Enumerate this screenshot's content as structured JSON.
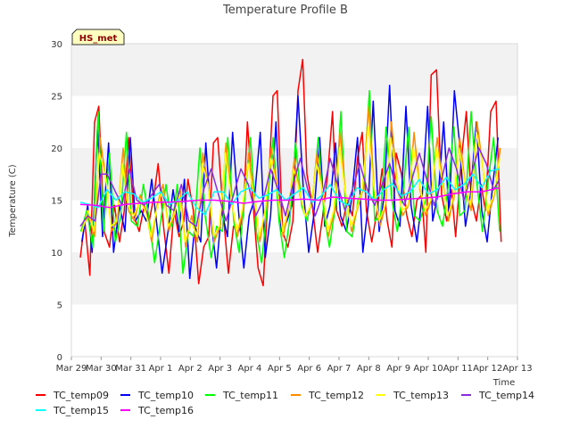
{
  "chart_data": {
    "type": "line",
    "title": "Temperature Profile B",
    "xlabel": "Time",
    "ylabel": "Temperature (C)",
    "badge": "HS_met",
    "xlim": [
      "2024-03-29",
      "2024-04-13"
    ],
    "ylim": [
      0,
      30
    ],
    "y_ticks": [
      0,
      5,
      10,
      15,
      20,
      25,
      30
    ],
    "x_ticks": [
      "Mar 29",
      "Mar 30",
      "Mar 31",
      "Apr 1",
      "Apr 2",
      "Apr 3",
      "Apr 4",
      "Apr 5",
      "Apr 6",
      "Apr 7",
      "Apr 8",
      "Apr 9",
      "Apr 10",
      "Apr 11",
      "Apr 12",
      "Apr 13"
    ],
    "grid": "horizontal bands",
    "legend_position": "bottom",
    "series": [
      {
        "name": "TC_temp09",
        "color": "#ff0000",
        "days": [
          0.3,
          0.45,
          0.62,
          0.78,
          0.92,
          1.1,
          1.28,
          1.45,
          1.62,
          1.78,
          1.92,
          2.1,
          2.28,
          2.45,
          2.62,
          2.78,
          2.92,
          3.1,
          3.28,
          3.45,
          3.62,
          3.78,
          3.92,
          4.1,
          4.28,
          4.45,
          4.62,
          4.78,
          4.92,
          5.1,
          5.28,
          5.45,
          5.62,
          5.78,
          5.92,
          6.1,
          6.28,
          6.45,
          6.62,
          6.78,
          6.92,
          7.1,
          7.28,
          7.45,
          7.62,
          7.78,
          7.92,
          8.1,
          8.28,
          8.45,
          8.62,
          8.78,
          8.92,
          9.1,
          9.28,
          9.45,
          9.62,
          9.78,
          9.92,
          10.1,
          10.28,
          10.45,
          10.62,
          10.78,
          10.92,
          11.1,
          11.28,
          11.45,
          11.62,
          11.78,
          11.92,
          12.1,
          12.28,
          12.45,
          12.62,
          12.78,
          12.92,
          13.1,
          13.28,
          13.45,
          13.62,
          13.78,
          13.92,
          14.1,
          14.28,
          14.45
        ],
        "temps": [
          9.5,
          13.0,
          7.8,
          22.5,
          24.0,
          12.0,
          10.5,
          14.5,
          11.0,
          14.0,
          21.0,
          13.5,
          12.0,
          14.5,
          13.0,
          15.5,
          18.5,
          12.5,
          8.0,
          14.0,
          11.5,
          13.0,
          17.0,
          14.0,
          7.0,
          10.5,
          11.5,
          20.5,
          21.0,
          14.0,
          8.0,
          12.5,
          12.0,
          13.5,
          22.5,
          15.0,
          8.5,
          6.8,
          16.0,
          25.0,
          25.5,
          12.0,
          10.5,
          13.0,
          25.5,
          28.5,
          17.5,
          14.5,
          10.0,
          13.5,
          17.5,
          23.5,
          14.0,
          12.5,
          15.0,
          13.5,
          19.0,
          21.5,
          14.0,
          11.0,
          14.0,
          18.0,
          13.0,
          10.5,
          19.5,
          17.5,
          13.5,
          11.5,
          15.0,
          15.5,
          10.0,
          27.0,
          27.5,
          15.5,
          13.0,
          16.0,
          11.5,
          18.5,
          23.5,
          15.0,
          13.0,
          16.5,
          14.0,
          23.5,
          24.5,
          11.0
        ]
      },
      {
        "name": "TC_temp10",
        "color": "#0000ff",
        "days": [
          0.35,
          0.55,
          0.7,
          0.88,
          1.05,
          1.25,
          1.42,
          1.62,
          1.8,
          1.98,
          2.15,
          2.35,
          2.52,
          2.7,
          2.88,
          3.05,
          3.25,
          3.42,
          3.62,
          3.8,
          3.98,
          4.15,
          4.35,
          4.52,
          4.7,
          4.88,
          5.05,
          5.25,
          5.42,
          5.62,
          5.8,
          5.98,
          6.15,
          6.35,
          6.52,
          6.7,
          6.88,
          7.05,
          7.25,
          7.42,
          7.62,
          7.8,
          7.98,
          8.15,
          8.35,
          8.52,
          8.7,
          8.88,
          9.05,
          9.25,
          9.42,
          9.62,
          9.8,
          9.98,
          10.15,
          10.35,
          10.52,
          10.7,
          10.88,
          11.05,
          11.25,
          11.42,
          11.62,
          11.8,
          11.98,
          12.15,
          12.35,
          12.52,
          12.7,
          12.88,
          13.05,
          13.25,
          13.42,
          13.62,
          13.8,
          13.98,
          14.15,
          14.35
        ],
        "temps": [
          11.0,
          14.5,
          10.0,
          22.0,
          11.5,
          20.5,
          10.0,
          14.5,
          12.0,
          21.0,
          13.0,
          14.0,
          13.0,
          17.0,
          12.5,
          8.0,
          12.0,
          16.0,
          12.0,
          17.0,
          7.5,
          12.5,
          11.0,
          20.5,
          13.0,
          8.5,
          14.0,
          11.5,
          21.5,
          14.0,
          8.5,
          13.5,
          15.0,
          21.5,
          9.5,
          13.5,
          22.5,
          12.0,
          13.0,
          14.5,
          25.0,
          16.0,
          10.0,
          13.5,
          21.0,
          12.5,
          14.5,
          20.5,
          13.5,
          12.0,
          15.0,
          21.0,
          10.0,
          14.5,
          24.5,
          12.0,
          15.5,
          26.0,
          14.0,
          12.5,
          24.0,
          14.5,
          11.0,
          15.5,
          24.0,
          13.0,
          16.0,
          22.5,
          13.5,
          25.5,
          20.5,
          12.5,
          15.5,
          22.5,
          14.0,
          11.0,
          16.0,
          21.0
        ]
      },
      {
        "name": "TC_temp11",
        "color": "#00ff00",
        "days": [
          0.32,
          0.52,
          0.72,
          0.9,
          1.08,
          1.28,
          1.48,
          1.66,
          1.85,
          2.02,
          2.22,
          2.42,
          2.6,
          2.8,
          2.98,
          3.18,
          3.38,
          3.56,
          3.75,
          3.94,
          4.12,
          4.32,
          4.5,
          4.7,
          4.88,
          5.08,
          5.26,
          5.46,
          5.64,
          5.84,
          6.02,
          6.22,
          6.4,
          6.6,
          6.78,
          6.98,
          7.16,
          7.36,
          7.54,
          7.74,
          7.92,
          8.12,
          8.3,
          8.5,
          8.68,
          8.88,
          9.06,
          9.26,
          9.44,
          9.64,
          9.82,
          10.02,
          10.2,
          10.4,
          10.58,
          10.78,
          10.96,
          11.16,
          11.34,
          11.54,
          11.72,
          11.92,
          12.1,
          12.3,
          12.48,
          12.68,
          12.86,
          13.06,
          13.24,
          13.44,
          13.62,
          13.82,
          14.0,
          14.2,
          14.4
        ],
        "temps": [
          12.0,
          14.0,
          10.5,
          23.5,
          12.0,
          19.5,
          11.0,
          13.5,
          21.5,
          13.0,
          12.5,
          16.5,
          13.5,
          9.0,
          12.5,
          16.5,
          12.5,
          16.5,
          8.0,
          12.0,
          11.5,
          20.0,
          13.5,
          9.5,
          12.5,
          12.0,
          21.0,
          13.0,
          10.0,
          15.5,
          21.0,
          12.0,
          9.0,
          15.0,
          21.0,
          13.0,
          9.5,
          13.5,
          20.5,
          14.5,
          13.0,
          15.5,
          21.0,
          13.5,
          10.5,
          14.5,
          23.5,
          12.0,
          11.5,
          15.0,
          16.0,
          25.5,
          13.0,
          13.5,
          22.0,
          15.0,
          12.0,
          16.0,
          22.0,
          13.5,
          13.0,
          15.0,
          23.0,
          14.0,
          12.5,
          16.5,
          22.0,
          13.5,
          14.0,
          23.5,
          17.0,
          12.0,
          16.5,
          21.0,
          12.0
        ]
      },
      {
        "name": "TC_temp12",
        "color": "#ff8c00",
        "days": [
          0.38,
          0.58,
          0.78,
          0.96,
          1.16,
          1.36,
          1.54,
          1.74,
          1.92,
          2.12,
          2.32,
          2.5,
          2.7,
          2.88,
          3.08,
          3.28,
          3.46,
          3.66,
          3.84,
          4.04,
          4.24,
          4.42,
          4.62,
          4.8,
          5.0,
          5.2,
          5.38,
          5.58,
          5.76,
          5.96,
          6.16,
          6.34,
          6.54,
          6.72,
          6.92,
          7.12,
          7.3,
          7.5,
          7.68,
          7.88,
          8.08,
          8.26,
          8.46,
          8.64,
          8.84,
          9.04,
          9.22,
          9.42,
          9.6,
          9.8,
          10.0,
          10.18,
          10.38,
          10.56,
          10.76,
          10.96,
          11.14,
          11.34,
          11.52,
          11.72,
          11.92,
          12.1,
          12.3,
          12.48,
          12.68,
          12.88,
          13.06,
          13.26,
          13.44,
          13.64,
          13.84,
          14.02,
          14.22,
          14.42
        ],
        "temps": [
          12.5,
          13.5,
          11.5,
          21.0,
          17.0,
          12.0,
          13.0,
          20.0,
          14.0,
          13.0,
          15.5,
          14.0,
          11.0,
          14.5,
          16.5,
          12.0,
          14.0,
          16.0,
          10.5,
          13.5,
          11.0,
          19.5,
          16.0,
          11.0,
          12.5,
          20.5,
          15.0,
          11.5,
          14.0,
          19.5,
          15.0,
          11.0,
          14.5,
          20.0,
          16.5,
          11.5,
          14.0,
          19.0,
          15.5,
          13.5,
          14.5,
          19.5,
          15.5,
          11.5,
          14.0,
          21.5,
          15.5,
          12.0,
          14.0,
          16.0,
          24.0,
          16.0,
          12.5,
          14.5,
          22.5,
          16.5,
          13.5,
          14.5,
          21.5,
          16.0,
          13.5,
          15.0,
          21.0,
          17.0,
          13.0,
          15.5,
          21.0,
          16.0,
          14.0,
          22.5,
          18.0,
          13.5,
          15.5,
          20.0
        ]
      },
      {
        "name": "TC_temp13",
        "color": "#ffff00",
        "days": [
          0.36,
          0.56,
          0.76,
          0.94,
          1.14,
          1.34,
          1.52,
          1.72,
          1.9,
          2.1,
          2.3,
          2.48,
          2.68,
          2.86,
          3.06,
          3.26,
          3.44,
          3.64,
          3.82,
          4.02,
          4.22,
          4.4,
          4.6,
          4.78,
          4.98,
          5.18,
          5.36,
          5.56,
          5.74,
          5.94,
          6.14,
          6.32,
          6.52,
          6.7,
          6.9,
          7.1,
          7.28,
          7.48,
          7.66,
          7.86,
          8.06,
          8.24,
          8.44,
          8.62,
          8.82,
          9.02,
          9.2,
          9.4,
          9.58,
          9.78,
          9.98,
          10.16,
          10.36,
          10.54,
          10.74,
          10.94,
          11.12,
          11.32,
          11.5,
          11.7,
          11.9,
          12.08,
          12.28,
          12.46,
          12.66,
          12.86,
          13.04,
          13.24,
          13.42,
          13.62,
          13.82,
          14.0,
          14.2,
          14.4
        ],
        "temps": [
          12.0,
          14.0,
          12.0,
          19.5,
          17.5,
          12.5,
          13.0,
          18.5,
          14.5,
          13.5,
          15.0,
          14.0,
          11.5,
          14.0,
          16.0,
          12.5,
          13.5,
          15.5,
          11.0,
          13.0,
          11.5,
          18.5,
          16.5,
          11.5,
          12.5,
          19.5,
          15.5,
          12.0,
          14.0,
          18.5,
          15.5,
          11.5,
          14.0,
          19.0,
          16.5,
          12.0,
          14.0,
          18.0,
          16.0,
          13.5,
          14.5,
          18.5,
          16.0,
          12.0,
          14.0,
          20.0,
          16.0,
          12.5,
          14.0,
          16.0,
          22.0,
          16.5,
          13.0,
          14.5,
          21.0,
          17.0,
          14.0,
          14.5,
          20.0,
          16.5,
          14.0,
          15.0,
          20.0,
          17.0,
          13.5,
          15.5,
          20.0,
          16.5,
          14.5,
          21.5,
          18.5,
          14.0,
          15.5,
          19.0
        ]
      },
      {
        "name": "TC_temp14",
        "color": "#8a2be2",
        "days": [
          0.3,
          0.55,
          0.8,
          1.0,
          1.2,
          1.45,
          1.7,
          1.95,
          2.2,
          2.45,
          2.7,
          2.95,
          3.2,
          3.45,
          3.7,
          3.95,
          4.2,
          4.45,
          4.7,
          4.95,
          5.2,
          5.45,
          5.7,
          5.95,
          6.2,
          6.45,
          6.7,
          6.95,
          7.2,
          7.45,
          7.7,
          7.95,
          8.2,
          8.45,
          8.7,
          8.95,
          9.2,
          9.45,
          9.7,
          9.95,
          10.2,
          10.45,
          10.7,
          10.95,
          11.2,
          11.45,
          11.7,
          11.95,
          12.2,
          12.45,
          12.7,
          12.95,
          13.2,
          13.45,
          13.7,
          13.95,
          14.2,
          14.4
        ],
        "temps": [
          12.5,
          13.5,
          13.0,
          17.5,
          17.5,
          16.0,
          14.5,
          18.0,
          15.0,
          14.5,
          15.5,
          16.5,
          14.5,
          14.0,
          16.5,
          13.0,
          12.5,
          16.0,
          18.0,
          15.5,
          13.0,
          15.5,
          18.0,
          16.5,
          13.5,
          15.0,
          18.0,
          16.0,
          13.5,
          16.5,
          19.0,
          16.0,
          13.5,
          15.5,
          19.0,
          16.5,
          14.0,
          16.0,
          18.5,
          16.0,
          14.5,
          16.5,
          18.5,
          16.0,
          14.5,
          17.0,
          19.5,
          17.0,
          14.5,
          17.0,
          20.0,
          18.0,
          15.0,
          17.5,
          20.0,
          18.5,
          16.0,
          17.0
        ]
      },
      {
        "name": "TC_temp15",
        "color": "#00ffff",
        "days": [
          0.3,
          0.6,
          0.9,
          1.2,
          1.5,
          1.8,
          2.1,
          2.4,
          2.7,
          3.0,
          3.3,
          3.6,
          3.9,
          4.2,
          4.5,
          4.8,
          5.1,
          5.4,
          5.7,
          6.0,
          6.3,
          6.6,
          6.9,
          7.2,
          7.5,
          7.8,
          8.1,
          8.4,
          8.7,
          9.0,
          9.3,
          9.6,
          9.9,
          10.2,
          10.5,
          10.8,
          11.1,
          11.4,
          11.7,
          12.0,
          12.3,
          12.6,
          12.9,
          13.2,
          13.5,
          13.8,
          14.1,
          14.4
        ],
        "temps": [
          14.8,
          14.6,
          14.3,
          16.0,
          15.0,
          15.8,
          15.6,
          14.8,
          15.2,
          15.8,
          14.6,
          15.0,
          15.8,
          14.3,
          13.6,
          15.8,
          15.8,
          14.6,
          15.8,
          16.2,
          15.2,
          15.5,
          16.0,
          15.0,
          15.6,
          16.2,
          14.8,
          15.4,
          16.5,
          15.0,
          14.5,
          16.2,
          15.8,
          15.0,
          16.0,
          16.6,
          15.4,
          15.8,
          17.0,
          15.6,
          16.0,
          17.2,
          16.0,
          16.5,
          17.5,
          16.2,
          17.8,
          18.0
        ]
      },
      {
        "name": "TC_temp16",
        "color": "#ff00ff",
        "days": [
          0.3,
          0.8,
          1.3,
          1.8,
          2.3,
          2.8,
          3.3,
          3.8,
          4.3,
          4.8,
          5.3,
          5.8,
          6.3,
          6.8,
          7.3,
          7.8,
          8.3,
          8.8,
          9.3,
          9.8,
          10.3,
          10.8,
          11.3,
          11.8,
          12.3,
          12.8,
          13.3,
          13.8,
          14.4
        ],
        "temps": [
          14.6,
          14.5,
          14.3,
          14.6,
          14.7,
          14.8,
          14.8,
          14.9,
          15.0,
          15.0,
          14.9,
          14.7,
          14.9,
          15.0,
          15.0,
          15.1,
          15.0,
          15.3,
          15.2,
          15.1,
          15.0,
          15.0,
          15.1,
          15.2,
          15.3,
          15.6,
          15.8,
          15.8,
          16.2
        ]
      }
    ]
  }
}
